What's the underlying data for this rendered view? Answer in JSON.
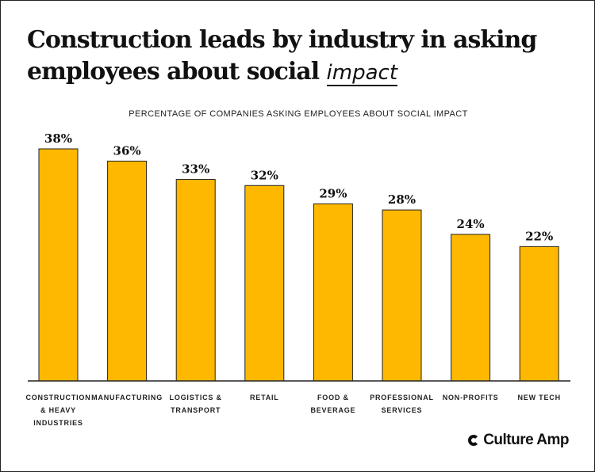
{
  "title_main": "Construction leads by industry in asking employees about social",
  "title_emphasis": "impact",
  "brand": {
    "name": "Culture Amp",
    "icon": "culture-amp-c-icon"
  },
  "chart_data": {
    "type": "bar",
    "subtitle": "PERCENTAGE OF COMPANIES ASKING EMPLOYEES ABOUT SOCIAL IMPACT",
    "categories": [
      [
        "CONSTRUCTION",
        "& HEAVY",
        "INDUSTRIES"
      ],
      [
        "MANUFACTURING"
      ],
      [
        "LOGISTICS &",
        "TRANSPORT"
      ],
      [
        "RETAIL"
      ],
      [
        "FOOD &",
        "BEVERAGE"
      ],
      [
        "PROFESSIONAL",
        "SERVICES"
      ],
      [
        "NON-PROFITS"
      ],
      [
        "NEW TECH"
      ]
    ],
    "values": [
      38,
      36,
      33,
      32,
      29,
      28,
      24,
      22
    ],
    "value_labels": [
      "38%",
      "36%",
      "33%",
      "32%",
      "29%",
      "28%",
      "24%",
      "22%"
    ],
    "ylim": [
      0,
      38
    ],
    "grid": false,
    "bar_color": "#FFB800",
    "bar_border": "#222222"
  }
}
